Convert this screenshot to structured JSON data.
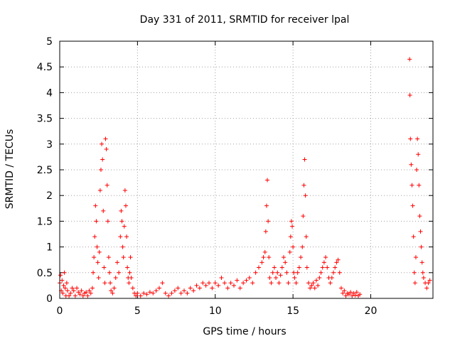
{
  "chart_data": {
    "type": "scatter",
    "title": "Day 331 of 2011, SRMTID for receiver lpal",
    "xlabel": "GPS time / hours",
    "ylabel": "SRMTID / TECUs",
    "xlim": [
      0,
      24
    ],
    "ylim": [
      0,
      5
    ],
    "xticks": [
      0,
      5,
      10,
      15,
      20
    ],
    "yticks": [
      0,
      0.5,
      1,
      1.5,
      2,
      2.5,
      3,
      3.5,
      4,
      4.5,
      5
    ],
    "ytick_labels": [
      "0",
      "0.5",
      "1",
      "1.5",
      "2",
      "2.5",
      "3",
      "3.5",
      "4",
      "4.5",
      "5"
    ],
    "grid": true,
    "marker": "+",
    "color": "#ff0000",
    "series": [
      {
        "points": [
          [
            0.0,
            0.3
          ],
          [
            0.05,
            0.45
          ],
          [
            0.1,
            0.15
          ],
          [
            0.15,
            0.35
          ],
          [
            0.2,
            0.1
          ],
          [
            0.25,
            0.25
          ],
          [
            0.3,
            0.5
          ],
          [
            0.35,
            0.2
          ],
          [
            0.4,
            0.05
          ],
          [
            0.45,
            0.3
          ],
          [
            0.5,
            0.15
          ],
          [
            0.6,
            0.05
          ],
          [
            0.7,
            0.1
          ],
          [
            0.8,
            0.2
          ],
          [
            0.9,
            0.15
          ],
          [
            1.0,
            0.05
          ],
          [
            1.1,
            0.2
          ],
          [
            1.2,
            0.12
          ],
          [
            1.3,
            0.08
          ],
          [
            1.4,
            0.15
          ],
          [
            1.5,
            0.05
          ],
          [
            1.6,
            0.1
          ],
          [
            1.7,
            0.12
          ],
          [
            1.8,
            0.05
          ],
          [
            1.9,
            0.15
          ],
          [
            2.0,
            0.1
          ],
          [
            2.1,
            0.2
          ],
          [
            2.15,
            0.5
          ],
          [
            2.2,
            0.8
          ],
          [
            2.25,
            1.2
          ],
          [
            2.3,
            1.8
          ],
          [
            2.35,
            1.5
          ],
          [
            2.4,
            1.0
          ],
          [
            2.45,
            0.7
          ],
          [
            2.5,
            0.4
          ],
          [
            2.55,
            0.9
          ],
          [
            2.6,
            2.1
          ],
          [
            2.65,
            2.5
          ],
          [
            2.7,
            3.0
          ],
          [
            2.75,
            2.7
          ],
          [
            2.8,
            1.7
          ],
          [
            2.85,
            0.6
          ],
          [
            2.9,
            0.3
          ],
          [
            2.95,
            3.1
          ],
          [
            3.0,
            2.9
          ],
          [
            3.05,
            2.2
          ],
          [
            3.1,
            1.5
          ],
          [
            3.15,
            0.8
          ],
          [
            3.2,
            0.5
          ],
          [
            3.25,
            0.3
          ],
          [
            3.3,
            0.15
          ],
          [
            3.4,
            0.1
          ],
          [
            3.5,
            0.2
          ],
          [
            3.6,
            0.4
          ],
          [
            3.7,
            0.7
          ],
          [
            3.8,
            0.5
          ],
          [
            3.9,
            1.2
          ],
          [
            3.95,
            1.7
          ],
          [
            4.0,
            1.5
          ],
          [
            4.05,
            1.0
          ],
          [
            4.1,
            0.8
          ],
          [
            4.15,
            1.4
          ],
          [
            4.2,
            2.1
          ],
          [
            4.25,
            1.8
          ],
          [
            4.3,
            1.2
          ],
          [
            4.35,
            0.6
          ],
          [
            4.4,
            0.4
          ],
          [
            4.45,
            0.3
          ],
          [
            4.5,
            0.5
          ],
          [
            4.55,
            0.8
          ],
          [
            4.6,
            0.4
          ],
          [
            4.7,
            0.2
          ],
          [
            4.8,
            0.1
          ],
          [
            4.9,
            0.05
          ],
          [
            5.0,
            0.1
          ],
          [
            5.2,
            0.05
          ],
          [
            5.4,
            0.1
          ],
          [
            5.6,
            0.08
          ],
          [
            5.8,
            0.12
          ],
          [
            6.0,
            0.1
          ],
          [
            6.2,
            0.15
          ],
          [
            6.4,
            0.2
          ],
          [
            6.6,
            0.3
          ],
          [
            6.8,
            0.1
          ],
          [
            7.0,
            0.05
          ],
          [
            7.2,
            0.1
          ],
          [
            7.4,
            0.15
          ],
          [
            7.6,
            0.2
          ],
          [
            7.8,
            0.1
          ],
          [
            8.0,
            0.15
          ],
          [
            8.2,
            0.1
          ],
          [
            8.4,
            0.2
          ],
          [
            8.6,
            0.15
          ],
          [
            8.8,
            0.25
          ],
          [
            9.0,
            0.2
          ],
          [
            9.2,
            0.3
          ],
          [
            9.4,
            0.25
          ],
          [
            9.6,
            0.3
          ],
          [
            9.8,
            0.2
          ],
          [
            10.0,
            0.3
          ],
          [
            10.2,
            0.25
          ],
          [
            10.4,
            0.4
          ],
          [
            10.6,
            0.3
          ],
          [
            10.8,
            0.2
          ],
          [
            11.0,
            0.3
          ],
          [
            11.2,
            0.25
          ],
          [
            11.4,
            0.35
          ],
          [
            11.6,
            0.2
          ],
          [
            11.8,
            0.3
          ],
          [
            12.0,
            0.35
          ],
          [
            12.2,
            0.4
          ],
          [
            12.4,
            0.3
          ],
          [
            12.6,
            0.5
          ],
          [
            12.8,
            0.6
          ],
          [
            13.0,
            0.7
          ],
          [
            13.1,
            0.8
          ],
          [
            13.2,
            0.9
          ],
          [
            13.25,
            1.3
          ],
          [
            13.3,
            1.8
          ],
          [
            13.35,
            2.3
          ],
          [
            13.4,
            1.5
          ],
          [
            13.45,
            0.8
          ],
          [
            13.5,
            0.4
          ],
          [
            13.6,
            0.3
          ],
          [
            13.7,
            0.5
          ],
          [
            13.8,
            0.6
          ],
          [
            13.9,
            0.4
          ],
          [
            14.0,
            0.5
          ],
          [
            14.1,
            0.3
          ],
          [
            14.2,
            0.45
          ],
          [
            14.3,
            0.6
          ],
          [
            14.4,
            0.8
          ],
          [
            14.5,
            0.7
          ],
          [
            14.6,
            0.5
          ],
          [
            14.7,
            0.3
          ],
          [
            14.8,
            0.9
          ],
          [
            14.85,
            1.2
          ],
          [
            14.9,
            1.5
          ],
          [
            14.95,
            1.4
          ],
          [
            15.0,
            1.0
          ],
          [
            15.05,
            0.5
          ],
          [
            15.1,
            0.4
          ],
          [
            15.2,
            0.3
          ],
          [
            15.3,
            0.5
          ],
          [
            15.4,
            0.6
          ],
          [
            15.5,
            0.8
          ],
          [
            15.6,
            1.0
          ],
          [
            15.65,
            1.6
          ],
          [
            15.7,
            2.2
          ],
          [
            15.75,
            2.7
          ],
          [
            15.8,
            2.0
          ],
          [
            15.85,
            1.2
          ],
          [
            15.9,
            0.6
          ],
          [
            16.0,
            0.3
          ],
          [
            16.1,
            0.2
          ],
          [
            16.2,
            0.25
          ],
          [
            16.3,
            0.3
          ],
          [
            16.4,
            0.2
          ],
          [
            16.5,
            0.35
          ],
          [
            16.6,
            0.25
          ],
          [
            16.7,
            0.4
          ],
          [
            16.8,
            0.5
          ],
          [
            16.9,
            0.6
          ],
          [
            17.0,
            0.7
          ],
          [
            17.1,
            0.8
          ],
          [
            17.2,
            0.6
          ],
          [
            17.3,
            0.4
          ],
          [
            17.4,
            0.3
          ],
          [
            17.5,
            0.4
          ],
          [
            17.6,
            0.5
          ],
          [
            17.7,
            0.6
          ],
          [
            17.8,
            0.7
          ],
          [
            17.9,
            0.75
          ],
          [
            18.0,
            0.5
          ],
          [
            18.1,
            0.2
          ],
          [
            18.2,
            0.1
          ],
          [
            18.3,
            0.15
          ],
          [
            18.4,
            0.05
          ],
          [
            18.5,
            0.1
          ],
          [
            18.6,
            0.08
          ],
          [
            18.7,
            0.12
          ],
          [
            18.8,
            0.05
          ],
          [
            18.9,
            0.1
          ],
          [
            19.0,
            0.06
          ],
          [
            19.1,
            0.12
          ],
          [
            19.2,
            0.05
          ],
          [
            19.3,
            0.08
          ],
          [
            22.5,
            4.65
          ],
          [
            22.52,
            3.95
          ],
          [
            22.55,
            3.1
          ],
          [
            22.6,
            2.6
          ],
          [
            22.65,
            2.2
          ],
          [
            22.7,
            1.8
          ],
          [
            22.75,
            1.2
          ],
          [
            22.8,
            0.5
          ],
          [
            22.85,
            0.3
          ],
          [
            22.9,
            0.8
          ],
          [
            22.95,
            2.5
          ],
          [
            23.0,
            3.1
          ],
          [
            23.05,
            2.8
          ],
          [
            23.1,
            2.2
          ],
          [
            23.15,
            1.6
          ],
          [
            23.2,
            1.3
          ],
          [
            23.25,
            1.0
          ],
          [
            23.3,
            0.7
          ],
          [
            23.35,
            0.5
          ],
          [
            23.4,
            0.4
          ],
          [
            23.5,
            0.3
          ],
          [
            23.6,
            0.2
          ],
          [
            23.7,
            0.3
          ],
          [
            23.8,
            0.35
          ]
        ]
      }
    ]
  }
}
